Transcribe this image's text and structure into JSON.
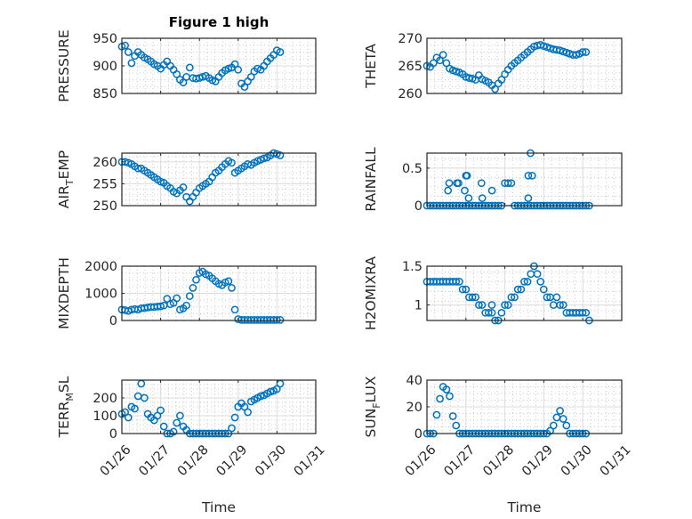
{
  "figure_title": "Figure 1 high",
  "marker_color": "#0072BD",
  "chart_data": [
    {
      "type": "scatter",
      "id": "pressure",
      "ylabel": "PRESSURE",
      "ylim": [
        850,
        950
      ],
      "yticks": [
        850,
        900,
        950
      ],
      "ytick_labels": [
        "850",
        "900",
        "950"
      ],
      "x_unit": "days since 01/26",
      "t0": 0,
      "dt": 0.0833,
      "values": [
        935,
        937,
        925,
        905,
        918,
        925,
        920,
        915,
        912,
        908,
        903,
        900,
        895,
        902,
        908,
        900,
        893,
        885,
        875,
        870,
        880,
        897,
        878,
        877,
        878,
        880,
        882,
        878,
        874,
        872,
        880,
        887,
        892,
        895,
        897,
        903,
        893,
        868,
        862,
        872,
        880,
        890,
        895,
        893,
        900,
        908,
        914,
        920,
        928,
        925
      ],
      "extra": []
    },
    {
      "type": "scatter",
      "id": "theta",
      "ylabel": "THETA",
      "ylim": [
        260,
        270
      ],
      "yticks": [
        260,
        265,
        270
      ],
      "ytick_labels": [
        "260",
        "265",
        "270"
      ],
      "t0": 0,
      "dt": 0.0833,
      "values": [
        265,
        264.8,
        265.5,
        266.5,
        266,
        267,
        265.5,
        264.5,
        264.2,
        264,
        263.8,
        263.5,
        263,
        262.8,
        262.7,
        262.5,
        263.3,
        262.6,
        262.3,
        262,
        261.5,
        260.8,
        261.8,
        262.5,
        263.5,
        264.3,
        265,
        265.5,
        266,
        266.5,
        267,
        267.5,
        268,
        268.5,
        268.7,
        268.8,
        268.6,
        268.4,
        268.2,
        268,
        267.9,
        267.8,
        267.6,
        267.4,
        267.2,
        267,
        267,
        267.2,
        267.5,
        267.5
      ],
      "extra": []
    },
    {
      "type": "scatter",
      "id": "air-temp",
      "ylabel": "AIR_TEMP",
      "ylim": [
        250,
        262
      ],
      "yticks": [
        250,
        255,
        260
      ],
      "ytick_labels": [
        "250",
        "255",
        "260"
      ],
      "t0": 0,
      "dt": 0.0833,
      "values": [
        260,
        260,
        259.8,
        259.5,
        259,
        258.5,
        258.5,
        258,
        257.5,
        257,
        256.5,
        256,
        255.5,
        255.2,
        254.5,
        254,
        253.2,
        252.8,
        253.5,
        254.2,
        252,
        251,
        252,
        253,
        254,
        254.5,
        255,
        255.5,
        256.5,
        257.5,
        258,
        258.8,
        259.5,
        260.2,
        259.8,
        257.5,
        258,
        258.5,
        259,
        259.5,
        259.3,
        259.8,
        260.2,
        260.5,
        260.8,
        261,
        261.5,
        262,
        261.8,
        261.5
      ],
      "extra": []
    },
    {
      "type": "scatter",
      "id": "rainfall",
      "ylabel": "RAINFALL",
      "ylim": [
        0,
        0.7
      ],
      "yticks": [
        0,
        0.5
      ],
      "ytick_labels": [
        "0",
        "0.5"
      ],
      "t0": 0,
      "dt": 0.0833,
      "values": [
        0,
        0,
        0,
        0,
        0,
        0,
        0,
        0,
        0,
        0,
        0,
        0,
        0,
        0,
        0,
        0,
        0,
        0,
        0,
        0,
        0,
        0,
        0,
        0,
        0.3,
        0.3,
        0.3,
        0,
        0,
        0,
        0,
        0,
        0,
        0,
        0,
        0,
        0,
        0,
        0,
        0,
        0,
        0,
        0,
        0,
        0,
        0,
        0,
        0,
        0,
        0,
        0
      ],
      "extra": [
        [
          0.54,
          0.2
        ],
        [
          0.57,
          0.3
        ],
        [
          0.77,
          0.3
        ],
        [
          0.81,
          0.3
        ],
        [
          0.97,
          0.2
        ],
        [
          1.0,
          0.4
        ],
        [
          1.03,
          0.4
        ],
        [
          1.07,
          0.1
        ],
        [
          1.4,
          0.3
        ],
        [
          1.42,
          0.1
        ],
        [
          1.67,
          0.2
        ],
        [
          2.6,
          0.1
        ],
        [
          2.6,
          0.4
        ],
        [
          2.7,
          0.4
        ],
        [
          2.66,
          0.7
        ]
      ]
    },
    {
      "type": "scatter",
      "id": "mixdepth",
      "ylabel": "MIXDEPTH",
      "ylim": [
        0,
        2000
      ],
      "yticks": [
        0,
        1000,
        2000
      ],
      "ytick_labels": [
        "0",
        "1000",
        "2000"
      ],
      "t0": 0,
      "dt": 0.0833,
      "values": [
        400,
        380,
        350,
        400,
        420,
        400,
        450,
        460,
        480,
        500,
        500,
        510,
        520,
        550,
        800,
        600,
        650,
        820,
        400,
        450,
        550,
        900,
        1200,
        1500,
        1750,
        1800,
        1700,
        1650,
        1550,
        1450,
        1350,
        1300,
        1400,
        1450,
        1200,
        400,
        50,
        20,
        20,
        20,
        20,
        20,
        20,
        20,
        20,
        20,
        20,
        20,
        20,
        20
      ],
      "extra": []
    },
    {
      "type": "scatter",
      "id": "h2omixra",
      "ylabel": "H2OMIXRA",
      "ylim": [
        0.8,
        1.5
      ],
      "yticks": [
        1,
        1.5
      ],
      "ytick_labels": [
        "1",
        "1.5"
      ],
      "t0": 0,
      "dt": 0.0833,
      "values": [
        1.3,
        1.3,
        1.3,
        1.3,
        1.3,
        1.3,
        1.3,
        1.3,
        1.3,
        1.3,
        1.3,
        1.2,
        1.2,
        1.1,
        1.1,
        1.1,
        1.0,
        1.0,
        0.9,
        0.9,
        1.0,
        0.8,
        0.8,
        0.9,
        1.0,
        1.0,
        1.1,
        1.1,
        1.2,
        1.2,
        1.3,
        1.3,
        1.4,
        1.5,
        1.4,
        1.3,
        1.2,
        1.1,
        1.1,
        1.0,
        1.1,
        1.0,
        1.0,
        0.9,
        0.9,
        0.9,
        0.9,
        0.9,
        0.9,
        0.9,
        0.8
      ],
      "extra": [
        [
          1.67,
          0.9
        ]
      ]
    },
    {
      "type": "scatter",
      "id": "terr-msl",
      "ylabel": "TERR_MSL",
      "ylim": [
        0,
        300
      ],
      "yticks": [
        0,
        100,
        200
      ],
      "ytick_labels": [
        "0",
        "100",
        "200"
      ],
      "t0": 0,
      "dt": 0.0833,
      "values": [
        110,
        120,
        90,
        150,
        140,
        210,
        280,
        200,
        110,
        90,
        75,
        100,
        130,
        40,
        0,
        0,
        10,
        60,
        100,
        40,
        20,
        0,
        0,
        0,
        0,
        0,
        0,
        0,
        0,
        0,
        0,
        0,
        0,
        0,
        30,
        90,
        150,
        170,
        150,
        120,
        180,
        190,
        200,
        210,
        215,
        225,
        235,
        240,
        250,
        280
      ],
      "extra": []
    },
    {
      "type": "scatter",
      "id": "sun-flux",
      "ylabel": "SUN_FLUX",
      "ylim": [
        0,
        40
      ],
      "yticks": [
        0,
        20,
        40
      ],
      "ytick_labels": [
        "0",
        "20",
        "40"
      ],
      "t0": 0,
      "dt": 0.0833,
      "values": [
        0,
        0,
        0,
        14,
        26,
        35,
        33,
        28,
        13,
        6,
        0,
        0,
        0,
        0,
        0,
        0,
        0,
        0,
        0,
        0,
        0,
        0,
        0,
        0,
        0,
        0,
        0,
        0,
        0,
        0,
        0,
        0,
        0,
        0,
        0,
        0,
        0,
        0,
        2,
        6,
        12,
        17,
        11,
        6,
        0,
        0,
        0,
        0,
        0,
        0
      ],
      "extra": []
    }
  ],
  "x_axis": {
    "label": "Time",
    "xlim_days": [
      0,
      5
    ],
    "tick_labels": [
      "01/26",
      "01/27",
      "01/28",
      "01/29",
      "01/30",
      "01/31"
    ]
  }
}
